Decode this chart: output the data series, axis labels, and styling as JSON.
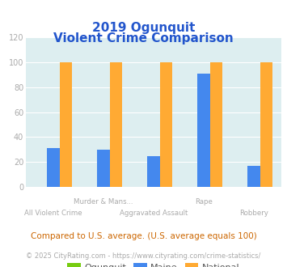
{
  "title_line1": "2019 Ogunquit",
  "title_line2": "Violent Crime Comparison",
  "ogunquit_values": [
    0,
    0,
    0,
    0,
    0
  ],
  "maine_values": [
    31,
    30,
    25,
    91,
    17
  ],
  "national_values": [
    100,
    100,
    100,
    100,
    100
  ],
  "ogunquit_color": "#77cc11",
  "maine_color": "#4488ee",
  "national_color": "#ffaa33",
  "ylim": [
    0,
    120
  ],
  "yticks": [
    0,
    20,
    40,
    60,
    80,
    100,
    120
  ],
  "bg_color": "#ddeef0",
  "title_color": "#2255cc",
  "axis_label_color": "#aaaaaa",
  "label_top": {
    "1": "Murder & Mans...",
    "3": "Rape"
  },
  "label_bottom": {
    "0": "All Violent Crime",
    "2": "Aggravated Assault",
    "4": "Robbery"
  },
  "legend_labels": [
    "Ogunquit",
    "Maine",
    "National"
  ],
  "footer_text": "Compared to U.S. average. (U.S. average equals 100)",
  "copyright_text": "© 2025 CityRating.com - https://www.cityrating.com/crime-statistics/",
  "footer_color": "#cc6600",
  "copyright_color": "#aaaaaa",
  "grid_color": "#ffffff"
}
